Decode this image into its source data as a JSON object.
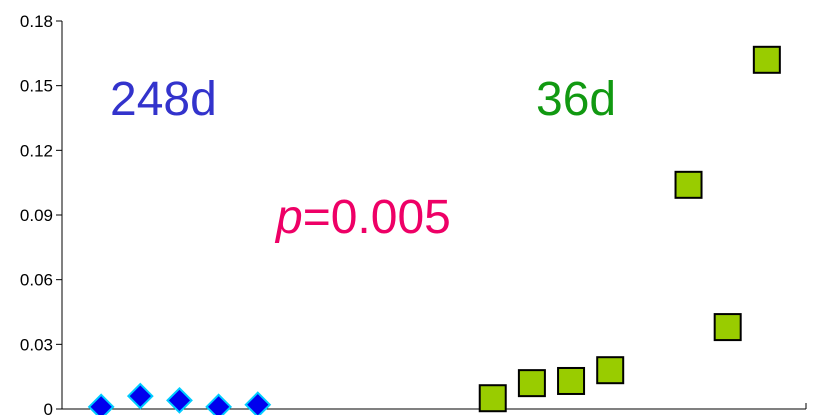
{
  "chart_data": {
    "type": "scatter",
    "ylim": [
      0,
      0.18
    ],
    "yticks": [
      "0",
      "0.03",
      "0.06",
      "0.09",
      "0.12",
      "0.15",
      "0.18"
    ],
    "grid": false,
    "legend": "none",
    "series": [
      {
        "marker": "diamond",
        "color": "#0000ee",
        "edge": "#00ccff",
        "x": [
          1,
          2,
          3,
          4,
          5
        ],
        "values": [
          0.001,
          0.006,
          0.004,
          0.001,
          0.002
        ]
      },
      {
        "marker": "square",
        "color": "#99cc00",
        "edge": "#000000",
        "x": [
          11,
          12,
          13,
          14,
          16,
          17,
          18
        ],
        "values": [
          0.005,
          0.012,
          0.013,
          0.018,
          0.104,
          0.038,
          0.162
        ]
      }
    ],
    "xlim": [
      0,
      19
    ],
    "annotations": [
      {
        "text": "248d",
        "color": "#3333cc"
      },
      {
        "text": "36d",
        "color": "#119911"
      },
      {
        "italic": "p",
        "text": "=0.005",
        "color": "#ee0066"
      }
    ]
  }
}
